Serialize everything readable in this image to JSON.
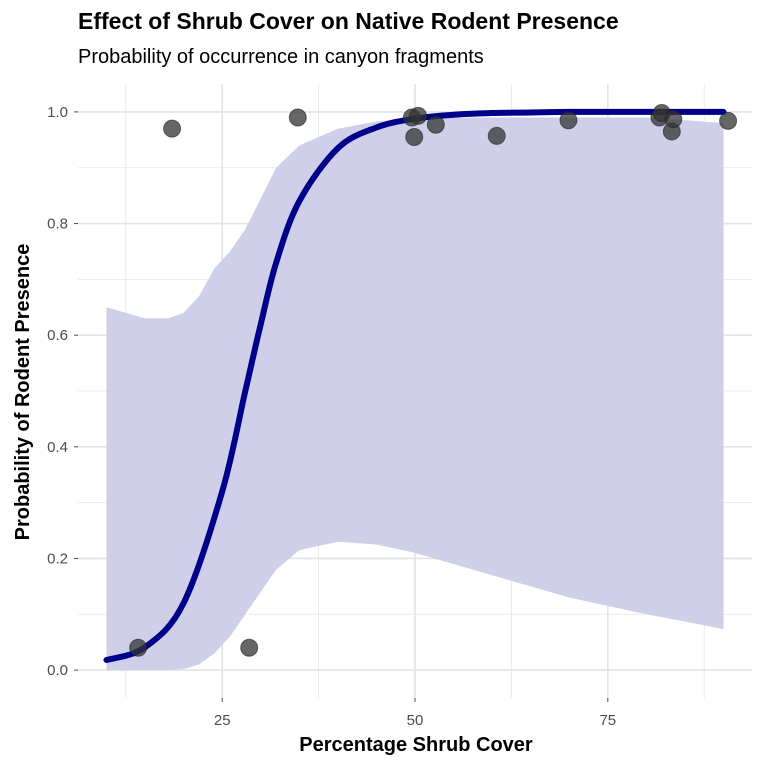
{
  "chart_data": {
    "type": "scatter",
    "title": "Effect of Shrub Cover on Native Rodent Presence",
    "subtitle": "Probability of occurrence in canyon fragments",
    "xlabel": "Percentage Shrub Cover",
    "ylabel": "Probability of Rodent Presence",
    "xlim": [
      6.3,
      93.7
    ],
    "ylim": [
      -0.05,
      1.05
    ],
    "x_ticks": [
      25,
      50,
      75
    ],
    "x_minor_ticks": [
      12.5,
      37.5,
      62.5,
      87.5
    ],
    "y_ticks": [
      0.0,
      0.2,
      0.4,
      0.6,
      0.8,
      1.0
    ],
    "y_tick_labels": [
      "0.0",
      "0.2",
      "0.4",
      "0.6",
      "0.8",
      "1.0"
    ],
    "y_minor_ticks": [
      0.1,
      0.3,
      0.5,
      0.7,
      0.9
    ],
    "grid": true,
    "points": {
      "x": [
        14.1,
        18.5,
        28.5,
        34.8,
        49.6,
        49.9,
        50.4,
        52.7,
        60.6,
        69.9,
        81.7,
        82.0,
        83.3,
        83.5,
        90.6
      ],
      "y": [
        0.04,
        0.97,
        0.04,
        0.99,
        0.99,
        0.955,
        0.993,
        0.977,
        0.957,
        0.985,
        0.99,
        0.998,
        0.965,
        0.987,
        0.984
      ]
    },
    "fit_curve": {
      "x": [
        10,
        15,
        20,
        25,
        28,
        30,
        32,
        35,
        40,
        45,
        50,
        55,
        60,
        65,
        70,
        75,
        80,
        85,
        90
      ],
      "y": [
        0.018,
        0.041,
        0.12,
        0.32,
        0.5,
        0.62,
        0.73,
        0.84,
        0.935,
        0.972,
        0.988,
        0.995,
        0.998,
        0.999,
        1.0,
        1.0,
        1.0,
        1.0,
        1.0
      ]
    },
    "confidence_band": {
      "x": [
        10,
        15,
        18,
        20,
        22,
        24,
        26,
        28,
        30,
        32,
        35,
        40,
        45,
        50,
        55,
        60,
        65,
        70,
        75,
        80,
        85,
        90
      ],
      "lower": [
        0.0,
        0.0,
        0.0,
        0.002,
        0.01,
        0.03,
        0.06,
        0.1,
        0.14,
        0.18,
        0.215,
        0.23,
        0.225,
        0.21,
        0.19,
        0.17,
        0.15,
        0.13,
        0.115,
        0.1,
        0.087,
        0.073
      ],
      "upper": [
        0.65,
        0.63,
        0.63,
        0.64,
        0.67,
        0.72,
        0.75,
        0.79,
        0.845,
        0.9,
        0.94,
        0.97,
        0.983,
        0.988,
        0.99,
        0.99,
        0.99,
        0.99,
        0.99,
        0.99,
        0.985,
        0.98
      ]
    },
    "colors": {
      "points": "#333333",
      "line": "#00008b",
      "band": "#cccce9",
      "grid": "#e6e6e6"
    }
  }
}
